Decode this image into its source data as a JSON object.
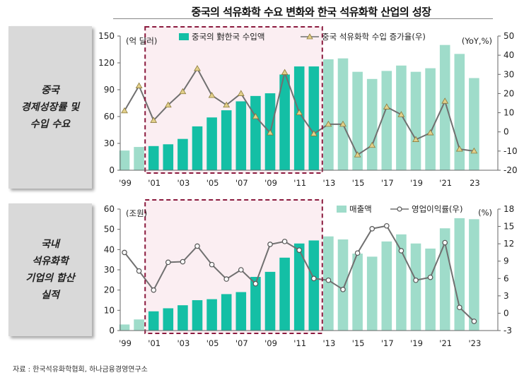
{
  "title": "중국의 석유화학 수요 변화와 한국 석유화학 산업의 성장",
  "panels": [
    {
      "label_lines": [
        "중국",
        "경제성장률 및",
        "수입 수요"
      ]
    },
    {
      "label_lines": [
        "국내",
        "석유화학",
        "기업의 합산",
        "실적"
      ]
    }
  ],
  "source": "자료 :  한국석유화학협회, 하나금융경영연구소",
  "colors": {
    "bar_light": "#9fdcca",
    "bar_dark": "#14bfa5",
    "line": "#707070",
    "marker_fill": "#e2cf8a",
    "marker_stroke": "#8a7a3a",
    "highlight_fill": "#fbeef2",
    "highlight_border": "#8b1a3e"
  },
  "chart_data": [
    {
      "type": "bar+line",
      "categories": [
        "'99",
        "'00",
        "'01",
        "'02",
        "'03",
        "'04",
        "'05",
        "'06",
        "'07",
        "'08",
        "'09",
        "'10",
        "'11",
        "'12",
        "'13",
        "'14",
        "'15",
        "'16",
        "'17",
        "'18",
        "'19",
        "'20",
        "'21",
        "'22",
        "'23"
      ],
      "tick_labels": [
        "'99",
        "",
        "'01",
        "",
        "'03",
        "",
        "'05",
        "",
        "'07",
        "",
        "'09",
        "",
        "'11",
        "",
        "'13",
        "",
        "'15",
        "",
        "'17",
        "",
        "'19",
        "",
        "'21",
        "",
        "23"
      ],
      "highlight_range": [
        "'01",
        "'12"
      ],
      "left_axis": {
        "unit": "(억 달러)",
        "ylim": [
          0,
          150
        ],
        "ticks": [
          "0",
          "30",
          "60",
          "90",
          "120",
          "150"
        ]
      },
      "right_axis": {
        "unit": "(YoY,%)",
        "ylim": [
          -20,
          50
        ],
        "ticks": [
          "-20",
          "-10",
          "0",
          "10",
          "20",
          "30",
          "40",
          "50"
        ]
      },
      "series": [
        {
          "name": "중국의 對한국 수입액",
          "type": "bar",
          "axis": "left",
          "values": [
            22,
            26,
            27,
            29,
            35,
            49,
            59,
            67,
            77,
            83,
            86,
            107,
            116,
            116,
            124,
            125,
            110,
            102,
            111,
            117,
            110,
            114,
            140,
            130,
            103
          ]
        },
        {
          "name": "중국 석유화학 수입 증가율(우)",
          "type": "line",
          "axis": "right",
          "values": [
            11,
            24,
            6,
            14,
            21,
            33,
            19,
            14,
            20,
            8,
            -0.5,
            31,
            10,
            -1,
            4,
            4,
            -12,
            -7,
            13,
            9,
            -4,
            -0.5,
            16,
            -9,
            -10
          ]
        }
      ]
    },
    {
      "type": "bar+line",
      "categories": [
        "'99",
        "'00",
        "'01",
        "'02",
        "'03",
        "'04",
        "'05",
        "'06",
        "'07",
        "'08",
        "'09",
        "'10",
        "'11",
        "'12",
        "'13",
        "'14",
        "'15",
        "'16",
        "'17",
        "'18",
        "'19",
        "'20",
        "'21",
        "'22",
        "'23"
      ],
      "tick_labels": [
        "'99",
        "",
        "'01",
        "",
        "'03",
        "",
        "'05",
        "",
        "'07",
        "",
        "'09",
        "",
        "'11",
        "",
        "'13",
        "",
        "'15",
        "",
        "'17",
        "",
        "'19",
        "",
        "'21",
        "",
        "'23"
      ],
      "highlight_range": [
        "'01",
        "'12"
      ],
      "left_axis": {
        "unit": "(조원)",
        "ylim": [
          0,
          60
        ],
        "ticks": [
          "0",
          "10",
          "20",
          "30",
          "40",
          "50",
          "60"
        ]
      },
      "right_axis": {
        "unit": "(%)",
        "ylim": [
          -3,
          18
        ],
        "ticks": [
          "-3",
          "0",
          "3",
          "6",
          "9",
          "12",
          "15",
          "18"
        ]
      },
      "series": [
        {
          "name": "매출액",
          "type": "bar",
          "axis": "left",
          "values": [
            3,
            5.5,
            9.5,
            11,
            12.5,
            15,
            15.5,
            18,
            19,
            26.5,
            29,
            36,
            43,
            44.5,
            46.5,
            45,
            38,
            36.5,
            44,
            47.5,
            43,
            40.5,
            50.5,
            55.5,
            55
          ]
        },
        {
          "name": "영업이익률(우)",
          "type": "line",
          "axis": "right",
          "values": [
            10.5,
            7.3,
            4,
            8.8,
            8.9,
            11.6,
            8.4,
            5.9,
            7.5,
            5.1,
            11.9,
            12.4,
            10.9,
            6,
            5.7,
            4.1,
            10.4,
            14.6,
            15.1,
            10.8,
            5.7,
            6.2,
            12.2,
            1,
            -1.4
          ]
        }
      ]
    }
  ]
}
